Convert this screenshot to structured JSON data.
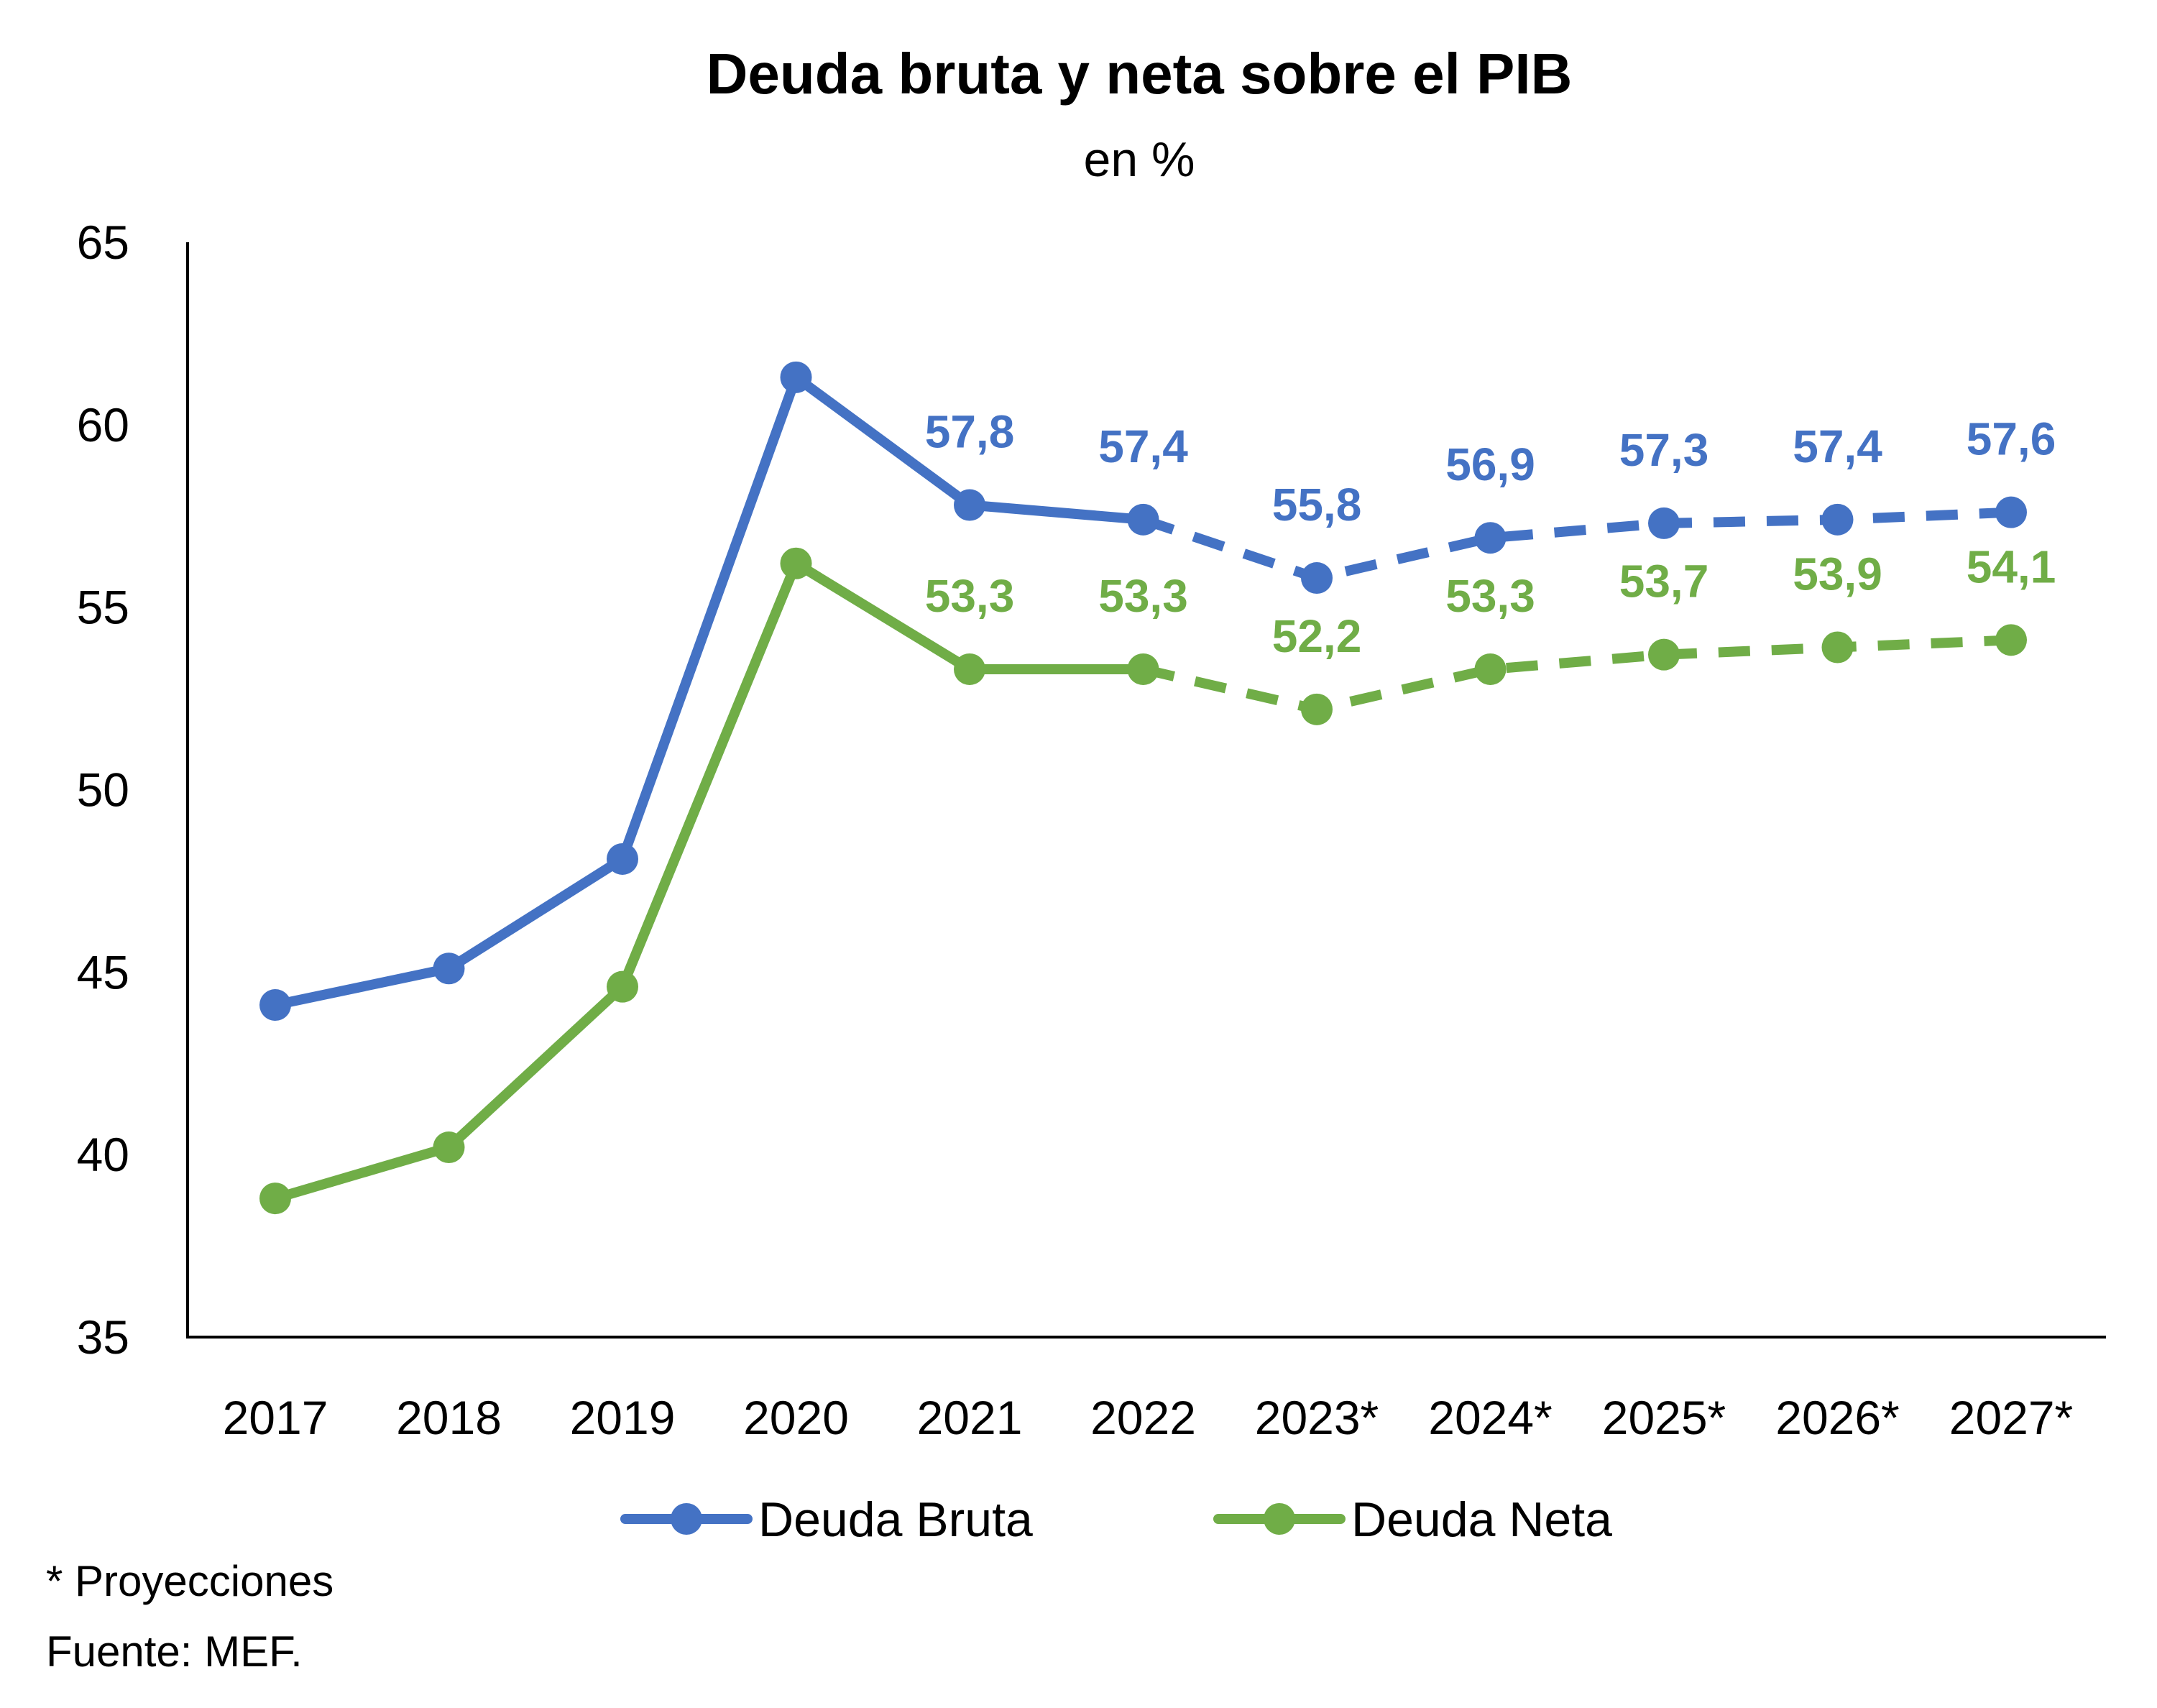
{
  "chart_data": {
    "type": "line",
    "title": "Deuda bruta y neta sobre el PIB",
    "subtitle": "en %",
    "x": [
      "2017",
      "2018",
      "2019",
      "2020",
      "2021",
      "2022",
      "2023*",
      "2024*",
      "2025*",
      "2026*",
      "2027*"
    ],
    "ylim": [
      35,
      65
    ],
    "yticks": [
      "35",
      "40",
      "45",
      "50",
      "55",
      "60",
      "65"
    ],
    "grid": false,
    "legend_position": "bottom",
    "projection_start_index": 5,
    "series": [
      {
        "name": "Deuda Bruta",
        "color": "#4472C4",
        "values": [
          44.1,
          45.1,
          48.1,
          61.3,
          57.8,
          57.4,
          55.8,
          56.9,
          57.3,
          57.4,
          57.6
        ],
        "labels": [
          "",
          "",
          "",
          "",
          "57,8",
          "57,4",
          "55,8",
          "56,9",
          "57,3",
          "57,4",
          "57,6"
        ]
      },
      {
        "name": "Deuda Neta",
        "color": "#70AD47",
        "values": [
          38.8,
          40.2,
          44.6,
          56.2,
          53.3,
          53.3,
          52.2,
          53.3,
          53.7,
          53.9,
          54.1
        ],
        "labels": [
          "",
          "",
          "",
          "",
          "53,3",
          "53,3",
          "52,2",
          "53,3",
          "53,7",
          "53,9",
          "54,1"
        ]
      }
    ]
  },
  "footnotes": {
    "projection_note": "* Proyecciones",
    "source": "Fuente: MEF."
  }
}
